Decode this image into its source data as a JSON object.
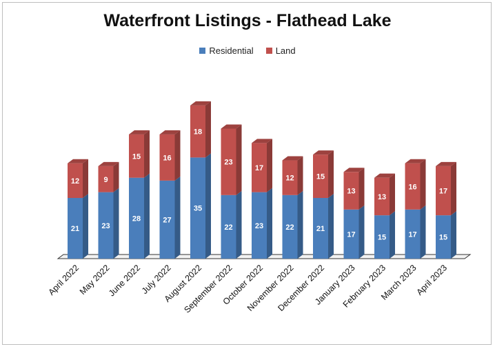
{
  "chart_data": {
    "type": "bar",
    "stacked": true,
    "title": "Waterfront Listings - Flathead Lake",
    "categories": [
      "April 2022",
      "May 2022",
      "June 2022",
      "July 2022",
      "August 2022",
      "September 2022",
      "October 2022",
      "November 2022",
      "December 2022",
      "January 2023",
      "February 2023",
      "March 2023",
      "April 2023"
    ],
    "series": [
      {
        "name": "Residential",
        "color": "#4a7ebb",
        "values": [
          21,
          23,
          28,
          27,
          35,
          22,
          23,
          22,
          21,
          17,
          15,
          17,
          15
        ]
      },
      {
        "name": "Land",
        "color": "#c0504d",
        "values": [
          12,
          9,
          15,
          16,
          18,
          23,
          17,
          12,
          15,
          13,
          13,
          16,
          17
        ]
      }
    ],
    "legend_position": "top",
    "grid": false
  }
}
